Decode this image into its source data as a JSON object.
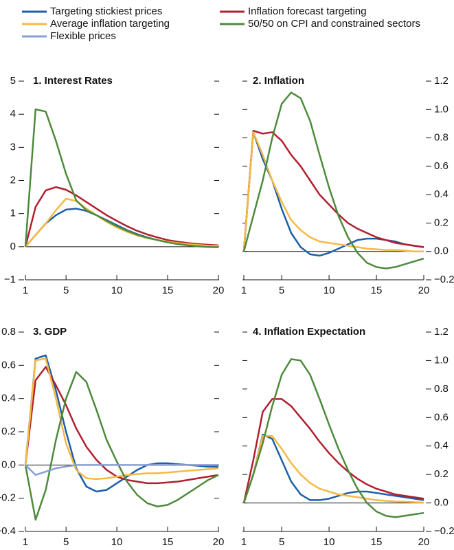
{
  "chart_data": [
    {
      "type": "line",
      "title": "1. Interest Rates",
      "y_axis_side": "left",
      "x": [
        1,
        2,
        3,
        4,
        5,
        6,
        7,
        8,
        9,
        10,
        11,
        12,
        13,
        14,
        15,
        16,
        17,
        18,
        19,
        20
      ],
      "xlim": [
        1,
        20
      ],
      "xticks": [
        1,
        5,
        10,
        15,
        20
      ],
      "ylim": [
        -1,
        5
      ],
      "yticks": [
        {
          "value": -1,
          "label": "−1"
        },
        0,
        1,
        2,
        3,
        4,
        5
      ],
      "series": [
        {
          "name": "Targeting stickiest prices",
          "color": "#1c5ea8",
          "values": [
            0,
            0.35,
            0.7,
            0.95,
            1.12,
            1.15,
            1.08,
            0.95,
            0.8,
            0.65,
            0.5,
            0.38,
            0.28,
            0.2,
            0.14,
            0.1,
            0.06,
            0.04,
            0.02,
            0.01
          ]
        },
        {
          "name": "Inflation forecast targeting",
          "color": "#b01f2e",
          "values": [
            0,
            1.2,
            1.7,
            1.8,
            1.72,
            1.55,
            1.35,
            1.15,
            0.95,
            0.78,
            0.62,
            0.48,
            0.37,
            0.28,
            0.2,
            0.15,
            0.11,
            0.08,
            0.06,
            0.04
          ]
        },
        {
          "name": "Average inflation targeting",
          "color": "#f5b942",
          "values": [
            0,
            0.35,
            0.7,
            1.1,
            1.45,
            1.38,
            1.15,
            0.95,
            0.75,
            0.58,
            0.45,
            0.34,
            0.26,
            0.2,
            0.15,
            0.11,
            0.08,
            0.05,
            0.03,
            0.02
          ]
        },
        {
          "name": "50/50 on CPI and constrained sectors",
          "color": "#4d8a3b",
          "values": [
            0,
            4.15,
            4.08,
            3.2,
            2.2,
            1.4,
            1.1,
            0.95,
            0.78,
            0.62,
            0.48,
            0.36,
            0.27,
            0.2,
            0.13,
            0.08,
            0.04,
            0.01,
            -0.01,
            -0.02
          ]
        }
      ]
    },
    {
      "type": "line",
      "title": "2. Inflation",
      "y_axis_side": "right",
      "x": [
        1,
        2,
        3,
        4,
        5,
        6,
        7,
        8,
        9,
        10,
        11,
        12,
        13,
        14,
        15,
        16,
        17,
        18,
        19,
        20
      ],
      "xlim": [
        1,
        20
      ],
      "xticks": [
        1,
        5,
        10,
        15,
        20
      ],
      "ylim": [
        -0.2,
        1.2
      ],
      "yticks": [
        {
          "value": -0.2,
          "label": "−0.2"
        },
        {
          "value": 0,
          "label": "0.0"
        },
        0.2,
        0.4,
        0.6,
        0.8,
        {
          "value": 1,
          "label": "1.0"
        },
        1.2
      ],
      "series": [
        {
          "name": "Targeting stickiest prices",
          "color": "#1c5ea8",
          "values": [
            0,
            0.84,
            0.65,
            0.5,
            0.3,
            0.13,
            0.03,
            -0.02,
            -0.03,
            -0.01,
            0.02,
            0.05,
            0.08,
            0.09,
            0.09,
            0.08,
            0.07,
            0.05,
            0.04,
            0.03
          ]
        },
        {
          "name": "Inflation forecast targeting",
          "color": "#b01f2e",
          "values": [
            0,
            0.85,
            0.83,
            0.84,
            0.78,
            0.68,
            0.6,
            0.5,
            0.4,
            0.33,
            0.26,
            0.2,
            0.16,
            0.13,
            0.1,
            0.08,
            0.06,
            0.05,
            0.04,
            0.03
          ]
        },
        {
          "name": "Average inflation targeting",
          "color": "#f5b942",
          "values": [
            0,
            0.84,
            0.68,
            0.5,
            0.35,
            0.22,
            0.15,
            0.1,
            0.07,
            0.06,
            0.05,
            0.04,
            0.03,
            0.02,
            0.015,
            0.01,
            0.01,
            0.005,
            0,
            0
          ]
        },
        {
          "name": "50/50 on CPI and constrained sectors",
          "color": "#4d8a3b",
          "values": [
            0,
            0.25,
            0.5,
            0.8,
            1.04,
            1.12,
            1.08,
            0.92,
            0.68,
            0.45,
            0.25,
            0.1,
            -0.01,
            -0.08,
            -0.11,
            -0.12,
            -0.11,
            -0.09,
            -0.07,
            -0.05
          ]
        }
      ]
    },
    {
      "type": "line",
      "title": "3. GDP",
      "y_axis_side": "left",
      "x": [
        1,
        2,
        3,
        4,
        5,
        6,
        7,
        8,
        9,
        10,
        11,
        12,
        13,
        14,
        15,
        16,
        17,
        18,
        19,
        20
      ],
      "xlim": [
        1,
        20
      ],
      "xticks": [
        1,
        5,
        10,
        15,
        20
      ],
      "ylim": [
        -0.4,
        0.8
      ],
      "yticks": [
        {
          "value": -0.4,
          "label": "−0.4"
        },
        {
          "value": -0.2,
          "label": "−0.2"
        },
        {
          "value": 0,
          "label": "0.0"
        },
        0.2,
        0.4,
        0.6,
        0.8
      ],
      "series": [
        {
          "name": "Targeting stickiest prices",
          "color": "#1c5ea8",
          "values": [
            0,
            0.64,
            0.66,
            0.45,
            0.2,
            -0.02,
            -0.13,
            -0.16,
            -0.15,
            -0.11,
            -0.07,
            -0.03,
            0,
            0.01,
            0.01,
            0.005,
            0,
            -0.005,
            -0.01,
            -0.01
          ]
        },
        {
          "name": "Inflation forecast targeting",
          "color": "#b01f2e",
          "values": [
            0,
            0.51,
            0.59,
            0.48,
            0.36,
            0.22,
            0.11,
            0.03,
            -0.03,
            -0.07,
            -0.09,
            -0.1,
            -0.11,
            -0.11,
            -0.105,
            -0.1,
            -0.09,
            -0.08,
            -0.07,
            -0.06
          ]
        },
        {
          "name": "Average inflation targeting",
          "color": "#f5b942",
          "values": [
            0,
            0.63,
            0.64,
            0.4,
            0.13,
            -0.03,
            -0.08,
            -0.085,
            -0.08,
            -0.07,
            -0.06,
            -0.055,
            -0.05,
            -0.05,
            -0.045,
            -0.04,
            -0.035,
            -0.03,
            -0.025,
            -0.02
          ]
        },
        {
          "name": "50/50 on CPI and constrained sectors",
          "color": "#4d8a3b",
          "values": [
            0,
            -0.33,
            -0.15,
            0.15,
            0.4,
            0.56,
            0.5,
            0.33,
            0.15,
            0.02,
            -0.1,
            -0.18,
            -0.23,
            -0.25,
            -0.24,
            -0.21,
            -0.17,
            -0.13,
            -0.09,
            -0.06
          ]
        },
        {
          "name": "Flexible prices",
          "color": "#8a9fd4",
          "values": [
            0,
            -0.06,
            -0.04,
            -0.02,
            -0.01,
            0,
            0,
            0,
            0,
            0,
            0,
            0,
            0,
            0,
            0,
            0,
            0,
            0,
            0,
            0
          ]
        }
      ]
    },
    {
      "type": "line",
      "title": "4. Inflation Expectation",
      "y_axis_side": "right",
      "x": [
        1,
        2,
        3,
        4,
        5,
        6,
        7,
        8,
        9,
        10,
        11,
        12,
        13,
        14,
        15,
        16,
        17,
        18,
        19,
        20
      ],
      "xlim": [
        1,
        20
      ],
      "xticks": [
        1,
        5,
        10,
        15,
        20
      ],
      "ylim": [
        -0.2,
        1.2
      ],
      "yticks": [
        {
          "value": -0.2,
          "label": "−0.2"
        },
        {
          "value": 0,
          "label": "0.0"
        },
        0.2,
        0.4,
        0.6,
        0.8,
        {
          "value": 1,
          "label": "1.0"
        },
        1.2
      ],
      "series": [
        {
          "name": "Targeting stickiest prices",
          "color": "#1c5ea8",
          "values": [
            0,
            0.2,
            0.48,
            0.45,
            0.3,
            0.15,
            0.06,
            0.02,
            0.02,
            0.03,
            0.05,
            0.07,
            0.08,
            0.08,
            0.07,
            0.06,
            0.05,
            0.04,
            0.03,
            0.02
          ]
        },
        {
          "name": "Inflation forecast targeting",
          "color": "#b01f2e",
          "values": [
            0,
            0.3,
            0.64,
            0.73,
            0.73,
            0.68,
            0.6,
            0.52,
            0.43,
            0.35,
            0.28,
            0.22,
            0.17,
            0.13,
            0.1,
            0.08,
            0.06,
            0.05,
            0.04,
            0.03
          ]
        },
        {
          "name": "Average inflation targeting",
          "color": "#f5b942",
          "values": [
            0,
            0.2,
            0.47,
            0.47,
            0.38,
            0.28,
            0.2,
            0.14,
            0.1,
            0.08,
            0.06,
            0.05,
            0.04,
            0.03,
            0.02,
            0.015,
            0.01,
            0.008,
            0.005,
            0.003
          ]
        },
        {
          "name": "50/50 on CPI and constrained sectors",
          "color": "#4d8a3b",
          "values": [
            0,
            0.2,
            0.42,
            0.68,
            0.9,
            1.01,
            1.0,
            0.9,
            0.73,
            0.55,
            0.38,
            0.23,
            0.1,
            0,
            -0.06,
            -0.09,
            -0.1,
            -0.09,
            -0.08,
            -0.07
          ]
        }
      ]
    }
  ]
}
